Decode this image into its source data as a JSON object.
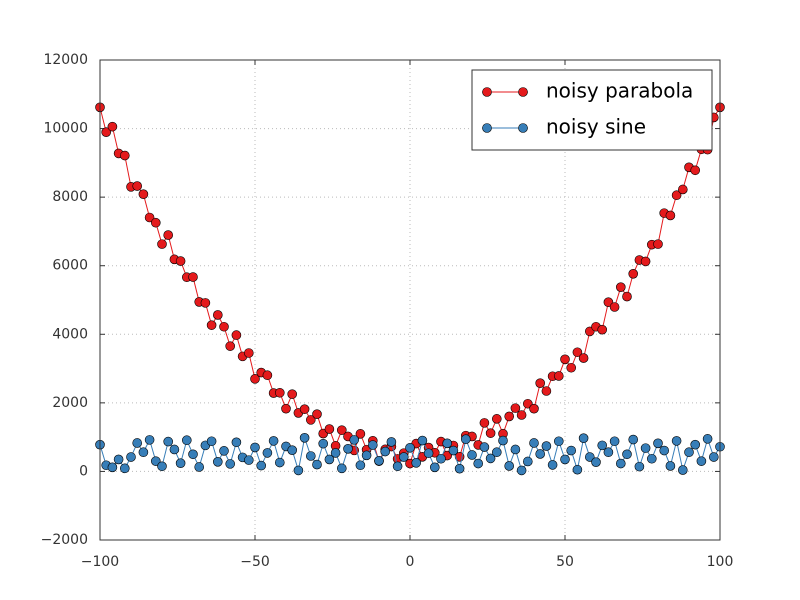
{
  "chart_data": {
    "type": "line",
    "xlim": [
      -100,
      100
    ],
    "ylim": [
      -2000,
      12000
    ],
    "xticks": [
      {
        "value": -100,
        "label": "−100"
      },
      {
        "value": -50,
        "label": "−50"
      },
      0,
      50,
      100
    ],
    "yticks": [
      {
        "value": -2000,
        "label": "−2000"
      },
      0,
      2000,
      4000,
      6000,
      8000,
      10000,
      12000
    ],
    "grid": true,
    "legend": "upper right",
    "x": [
      -100,
      -98,
      -96,
      -94,
      -92,
      -90,
      -88,
      -86,
      -84,
      -82,
      -80,
      -78,
      -76,
      -74,
      -72,
      -70,
      -68,
      -66,
      -64,
      -62,
      -60,
      -58,
      -56,
      -54,
      -52,
      -50,
      -48,
      -46,
      -44,
      -42,
      -40,
      -38,
      -36,
      -34,
      -32,
      -30,
      -28,
      -26,
      -24,
      -22,
      -20,
      -18,
      -16,
      -14,
      -12,
      -10,
      -8,
      -6,
      -4,
      -2,
      0,
      2,
      4,
      6,
      8,
      10,
      12,
      14,
      16,
      18,
      20,
      22,
      24,
      26,
      28,
      30,
      32,
      34,
      36,
      38,
      40,
      42,
      44,
      46,
      48,
      50,
      52,
      54,
      56,
      58,
      60,
      62,
      64,
      66,
      68,
      70,
      72,
      74,
      76,
      78,
      80,
      82,
      84,
      86,
      88,
      90,
      92,
      94,
      96,
      98,
      100
    ],
    "series": [
      {
        "name": "noisy parabola",
        "color": "#e41a1c",
        "values": [
          10620,
          9894,
          10056,
          9276,
          9214,
          8300,
          8324,
          8086,
          7406,
          7254,
          6630,
          6894,
          6186,
          6136,
          5664,
          5670,
          4944,
          4916,
          4266,
          4564,
          4220,
          3654,
          3976,
          3356,
          3454,
          2700,
          2884,
          2806,
          2286,
          2294,
          1830,
          2254,
          1706,
          1816,
          1504,
          1670,
          1104,
          1236,
          746,
          1204,
          1020,
          614,
          1096,
          636,
          894,
          300,
          644,
          726,
          366,
          534,
          230,
          814,
          426,
          696,
          544,
          870,
          464,
          756,
          426,
          1044,
          1020,
          774,
          1416,
          1116,
          1534,
          1100,
          1604,
          1846,
          1646,
          1974,
          1830,
          2574,
          2346,
          2776,
          2784,
          3270,
          3024,
          3476,
          3306,
          4084,
          4220,
          4134,
          4936,
          4796,
          5374,
          5100,
          5764,
          6166,
          6126,
          6614,
          6630,
          7534,
          7466,
          8056,
          8224,
          8870,
          8784,
          9396,
          9386,
          10324,
          10620
        ]
      },
      {
        "name": "noisy sine",
        "color": "#377eb8",
        "values": [
          780,
          180,
          120,
          350,
          90,
          420,
          830,
          560,
          920,
          300,
          150,
          870,
          640,
          240,
          910,
          500,
          130,
          760,
          880,
          280,
          600,
          220,
          850,
          410,
          330,
          700,
          170,
          540,
          890,
          260,
          730,
          620,
          30,
          980,
          450,
          200,
          810,
          350,
          540,
          90,
          660,
          920,
          180,
          470,
          770,
          310,
          580,
          860,
          150,
          420,
          690,
          250,
          900,
          530,
          120,
          370,
          820,
          610,
          80,
          940,
          480,
          230,
          710,
          380,
          560,
          900,
          160,
          640,
          30,
          290,
          830,
          510,
          740,
          190,
          880,
          350,
          610,
          50,
          970,
          420,
          270,
          760,
          560,
          880,
          230,
          500,
          930,
          140,
          680,
          370,
          820,
          610,
          160,
          890,
          40,
          560,
          780,
          300,
          950,
          420,
          720
        ]
      }
    ]
  }
}
